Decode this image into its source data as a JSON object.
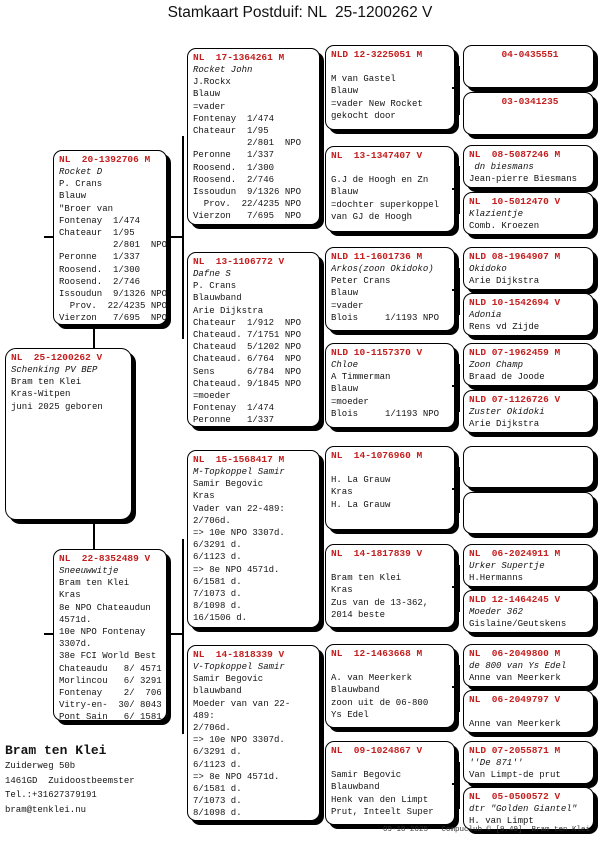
{
  "title": "Stamkaart Postduif: NL  25-1200262 V",
  "accent_color": "#c41e1e",
  "boxes": {
    "subject": {
      "ring": "NL  25-1200262 V",
      "lines": [
        {
          "t": "Schenking PV BEP",
          "i": true
        },
        {
          "t": "Bram ten Klei"
        },
        {
          "t": "Kras-Witpen"
        },
        {
          "t": "juni 2025 geboren"
        }
      ]
    },
    "father": {
      "ring": "NL  20-1392706 M",
      "lines": [
        {
          "t": "Rocket D",
          "i": true
        },
        {
          "t": "P. Crans"
        },
        {
          "t": "Blauw"
        },
        {
          "t": "\"Broer van"
        },
        {
          "t": "Fontenay  1/474"
        },
        {
          "t": "Chateaur  1/95"
        },
        {
          "t": "          2/801  NPO"
        },
        {
          "t": "Peronne   1/337"
        },
        {
          "t": "Roosend.  1/300"
        },
        {
          "t": "Roosend.  2/746"
        },
        {
          "t": "Issoudun  9/1326 NPO"
        },
        {
          "t": "  Prov.  22/4235 NPO"
        },
        {
          "t": "Vierzon   7/695  NPO"
        }
      ]
    },
    "mother": {
      "ring": "NL  22-8352489 V",
      "lines": [
        {
          "t": "Sneeuwwitje",
          "i": true
        },
        {
          "t": "Bram ten Klei"
        },
        {
          "t": "Kras"
        },
        {
          "t": "8e NPO Chateaudun"
        },
        {
          "t": "4571d."
        },
        {
          "t": "10e NPO Fontenay"
        },
        {
          "t": "3307d."
        },
        {
          "t": "38e FCI World Best"
        },
        {
          "t": "Chateaudu   8/ 4571"
        },
        {
          "t": "Morlincou   6/ 3291"
        },
        {
          "t": "Fontenay    2/  706"
        },
        {
          "t": "Vitry-en-  30/ 8043"
        },
        {
          "t": "Pont Sain   6/ 1581"
        }
      ]
    },
    "pgf": {
      "ring": "NL  17-1364261 M",
      "lines": [
        {
          "t": "Rocket John",
          "i": true
        },
        {
          "t": "J.Rockx"
        },
        {
          "t": "Blauw"
        },
        {
          "t": "=vader"
        },
        {
          "t": "Fontenay  1/474"
        },
        {
          "t": "Chateaur  1/95"
        },
        {
          "t": "          2/801  NPO"
        },
        {
          "t": "Peronne   1/337"
        },
        {
          "t": "Roosend.  1/300"
        },
        {
          "t": "Roosend.  2/746"
        },
        {
          "t": "Issoudun  9/1326 NPO"
        },
        {
          "t": "  Prov.  22/4235 NPO"
        },
        {
          "t": "Vierzon   7/695  NPO"
        }
      ]
    },
    "pgm": {
      "ring": "NL  13-1106772 V",
      "lines": [
        {
          "t": "Dafne S",
          "i": true
        },
        {
          "t": "P. Crans"
        },
        {
          "t": "Blauwband"
        },
        {
          "t": "Arie Dijkstra"
        },
        {
          "t": "Chateaur  1/912  NPO"
        },
        {
          "t": "Chateaud. 7/1751 NPO"
        },
        {
          "t": "Chateaud  5/1202 NPO"
        },
        {
          "t": "Chateaud. 6/764  NPO"
        },
        {
          "t": "Sens      6/784  NPO"
        },
        {
          "t": "Chateaud. 9/1845 NPO"
        },
        {
          "t": "=moeder"
        },
        {
          "t": "Fontenay  1/474"
        },
        {
          "t": "Peronne   1/337"
        }
      ]
    },
    "mgf": {
      "ring": "NL  15-1568417 M",
      "lines": [
        {
          "t": "M-Topkoppel Samir",
          "i": true
        },
        {
          "t": "Samir Begovic"
        },
        {
          "t": "Kras"
        },
        {
          "t": "Vader van 22-489:"
        },
        {
          "t": "2/706d."
        },
        {
          "t": "=> 10e NPO 3307d."
        },
        {
          "t": "6/3291 d."
        },
        {
          "t": "6/1123 d."
        },
        {
          "t": "=> 8e NPO 4571d."
        },
        {
          "t": "6/1581 d."
        },
        {
          "t": "7/1073 d."
        },
        {
          "t": "8/1098 d."
        },
        {
          "t": "16/1506 d."
        }
      ]
    },
    "mgm": {
      "ring": "NL  14-1818339 V",
      "lines": [
        {
          "t": "V-Topkoppel Samir",
          "i": true
        },
        {
          "t": "Samir Begovic"
        },
        {
          "t": "blauwband"
        },
        {
          "t": "Moeder van van 22-"
        },
        {
          "t": "489:"
        },
        {
          "t": "2/706d."
        },
        {
          "t": "=> 10e NPO 3307d."
        },
        {
          "t": "6/3291 d."
        },
        {
          "t": "6/1123 d."
        },
        {
          "t": "=> 8e NPO 4571d."
        },
        {
          "t": "6/1581 d."
        },
        {
          "t": "7/1073 d."
        },
        {
          "t": "8/1098 d."
        }
      ]
    },
    "g3_1": {
      "ring": "NLD 12-3225051 M",
      "lines": [
        {
          "t": ""
        },
        {
          "t": "M van Gastel"
        },
        {
          "t": "Blauw"
        },
        {
          "t": "=vader New Rocket"
        },
        {
          "t": "gekocht door"
        }
      ]
    },
    "g3_2": {
      "ring": "NL  13-1347407 V",
      "lines": [
        {
          "t": ""
        },
        {
          "t": "G.J de Hoogh en Zn"
        },
        {
          "t": "Blauw"
        },
        {
          "t": "=dochter superkoppel"
        },
        {
          "t": "van GJ de Hoogh"
        }
      ]
    },
    "g3_3": {
      "ring": "NLD 11-1601736 M",
      "lines": [
        {
          "t": "Arkos(zoon Okidoko)",
          "i": true
        },
        {
          "t": "Peter Crans"
        },
        {
          "t": "Blauw"
        },
        {
          "t": "=vader"
        },
        {
          "t": "Blois     1/1193 NPO"
        }
      ]
    },
    "g3_4": {
      "ring": "NLD 10-1157370 V",
      "lines": [
        {
          "t": "Chloe",
          "i": true
        },
        {
          "t": "A Timmerman"
        },
        {
          "t": "Blauw"
        },
        {
          "t": "=moeder"
        },
        {
          "t": "Blois     1/1193 NPO"
        }
      ]
    },
    "g3_5": {
      "ring": "NL  14-1076960 M",
      "lines": [
        {
          "t": ""
        },
        {
          "t": "H. La Grauw"
        },
        {
          "t": "Kras"
        },
        {
          "t": "H. La Grauw"
        }
      ]
    },
    "g3_6": {
      "ring": "NL  14-1817839 V",
      "lines": [
        {
          "t": ""
        },
        {
          "t": "Bram ten Klei"
        },
        {
          "t": "Kras"
        },
        {
          "t": "Zus van de 13-362,"
        },
        {
          "t": "2014 beste"
        }
      ]
    },
    "g3_7": {
      "ring": "NL  12-1463668 M",
      "lines": [
        {
          "t": ""
        },
        {
          "t": "A. van Meerkerk"
        },
        {
          "t": "Blauwband"
        },
        {
          "t": "zoon uit de 06-800"
        },
        {
          "t": "Ys Edel"
        }
      ]
    },
    "g3_8": {
      "ring": "NL  09-1024867 V",
      "lines": [
        {
          "t": ""
        },
        {
          "t": "Samir Begovic"
        },
        {
          "t": "Blauwband"
        },
        {
          "t": "Henk van den Limpt"
        },
        {
          "t": "Prut, Inteelt Super"
        }
      ]
    },
    "g4_1": {
      "ring": "04-0435551",
      "center": true,
      "lines": []
    },
    "g4_2": {
      "ring": "03-0341235",
      "center": true,
      "lines": []
    },
    "g4_3": {
      "ring": "NL  08-5087246 M",
      "lines": [
        {
          "t": " dn biesmans",
          "i": true
        },
        {
          "t": "Jean-pierre Biesmans"
        }
      ]
    },
    "g4_4": {
      "ring": "NL  10-5012470 V",
      "lines": [
        {
          "t": "Klazientje",
          "i": true
        },
        {
          "t": "Comb. Kroezen"
        }
      ]
    },
    "g4_5": {
      "ring": "NLD 08-1964907 M",
      "lines": [
        {
          "t": "Okidoko",
          "i": true
        },
        {
          "t": "Arie Dijkstra"
        }
      ]
    },
    "g4_6": {
      "ring": "NLD 10-1542694 V",
      "lines": [
        {
          "t": "Adonia",
          "i": true
        },
        {
          "t": "Rens vd Zijde"
        }
      ]
    },
    "g4_7": {
      "ring": "NLD 07-1962459 M",
      "lines": [
        {
          "t": "Zoon Champ",
          "i": true
        },
        {
          "t": "Braad de Joode"
        }
      ]
    },
    "g4_8": {
      "ring": "NLD 07-1126726 V",
      "lines": [
        {
          "t": "Zuster Okidoki",
          "i": true
        },
        {
          "t": "Arie Dijkstra"
        }
      ]
    },
    "g4_9": {
      "ring": "",
      "lines": []
    },
    "g4_10": {
      "ring": "",
      "lines": []
    },
    "g4_11": {
      "ring": "NL  06-2024911 M",
      "lines": [
        {
          "t": "Urker Supertje",
          "i": true
        },
        {
          "t": "H.Hermanns"
        }
      ]
    },
    "g4_12": {
      "ring": "NLD 12-1464245 V",
      "lines": [
        {
          "t": "Moeder 362",
          "i": true
        },
        {
          "t": "Gislaine/Geutskens"
        }
      ]
    },
    "g4_13": {
      "ring": "NL  06-2049800 M",
      "lines": [
        {
          "t": "de 800 van Ys Edel",
          "i": true
        },
        {
          "t": "Anne van Meerkerk"
        }
      ]
    },
    "g4_14": {
      "ring": "NL  06-2049797 V",
      "lines": [
        {
          "t": ""
        },
        {
          "t": "Anne van Meerkerk"
        }
      ]
    },
    "g4_15": {
      "ring": "NLD 07-2055871 M",
      "lines": [
        {
          "t": "''De 871''",
          "i": true
        },
        {
          "t": "Van Limpt-de prut"
        }
      ]
    },
    "g4_16": {
      "ring": "NL  05-0500572 V",
      "lines": [
        {
          "t": "dtr \"Golden Giantel\"",
          "i": true
        },
        {
          "t": "H. van Limpt"
        }
      ]
    }
  },
  "owner": {
    "name": "Bram ten Klei",
    "lines": [
      "Zuiderweg 50b",
      "1461GD  Zuidoostbeemster",
      "Tel.:+31627379191",
      "bram@tenklei.nu"
    ]
  },
  "footer": "09-10-2025   Compuclub © [9.49]  Bram ten Klei"
}
